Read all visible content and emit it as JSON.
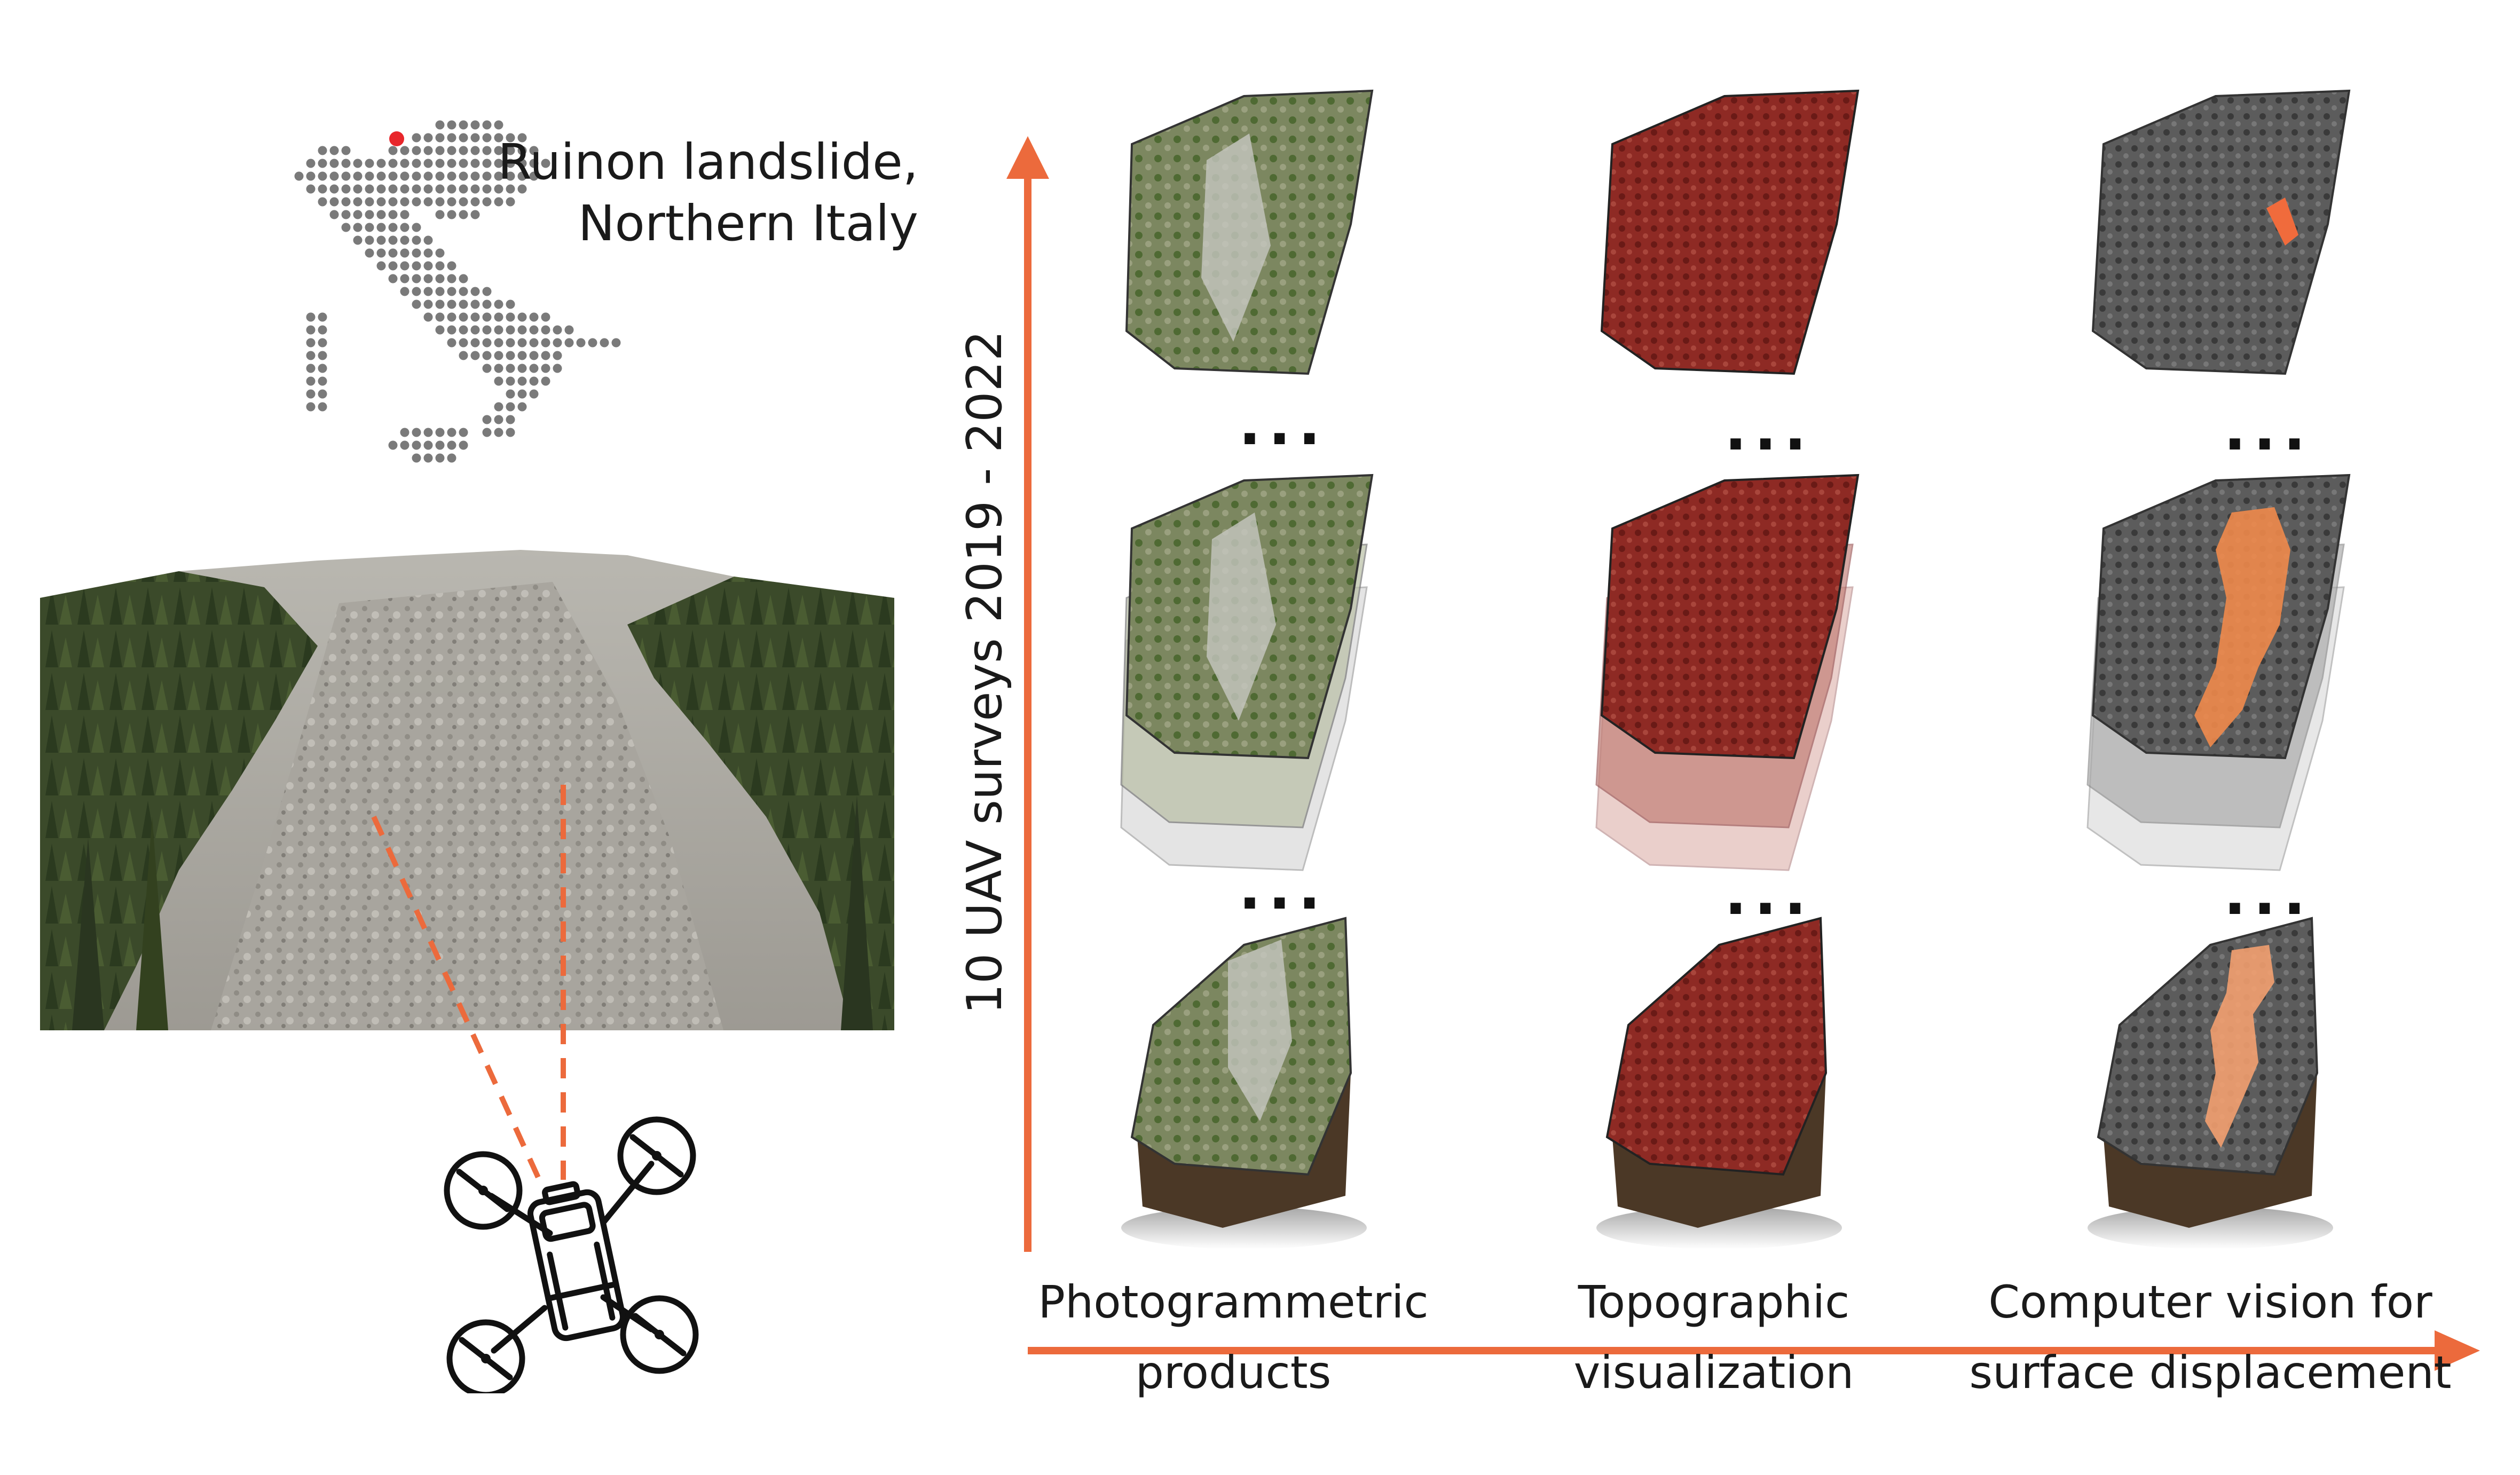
{
  "location": {
    "line1": "Ruinon landslide,",
    "line2": "Northern Italy",
    "marker_color": "#e8262b",
    "dot_color": "#7a7a7a"
  },
  "y_axis": {
    "label": "10 UAV surveys 2019 - 2022",
    "color": "#ec6a3c"
  },
  "x_axis": {
    "color": "#ec6a3c",
    "columns": [
      {
        "line1": "Photogrammetric",
        "line2": "products"
      },
      {
        "line1": "Topographic",
        "line2": "visualization"
      },
      {
        "line1": "Computer vision for",
        "line2": "surface displacement"
      }
    ]
  },
  "ellipsis": "...",
  "icons": {
    "drone": "drone-icon",
    "map": "italy-dot-map",
    "photo": "landslide-photo"
  },
  "colors": {
    "photogrammetric": "#6e7a52",
    "topographic": "#8e2a24",
    "computer_vision_base": "#4a4a4a",
    "displacement": "#f08a4b",
    "soil": "#4b3826"
  }
}
